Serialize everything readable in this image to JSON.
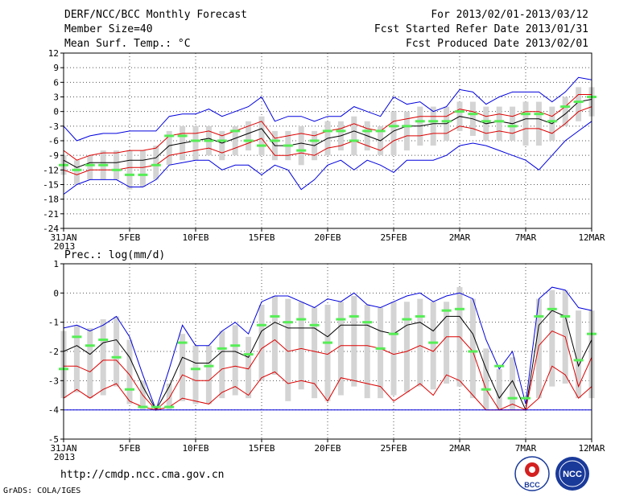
{
  "header": {
    "title": "DERF/NCC/BCC Monthly Forecast",
    "member_size": "Member Size=40",
    "variable": "Mean Surf. Temp.: °C",
    "period": "For 2013/02/01-2013/03/12",
    "refer_date": "Fcst Started Refer Date 2013/01/31",
    "produced_date": "Fcst Produced Date 2013/02/01"
  },
  "footer": {
    "url": "http://cmdp.ncc.cma.gov.cn",
    "grads": "GrADS: COLA/IGES",
    "logo_bcc": "BCC",
    "logo_ncc": "NCC"
  },
  "colors": {
    "max_min": "#0000dd",
    "pctl": "#dd0000",
    "mean": "#000000",
    "bar": "#d4d4d4",
    "obs": "#55ee55",
    "grid": "#555555"
  },
  "chart_data": [
    {
      "type": "line",
      "title": "Mean Surf. Temp.: °C",
      "x": [
        "31JAN",
        "1FEB",
        "2FEB",
        "3FEB",
        "4FEB",
        "5FEB",
        "6FEB",
        "7FEB",
        "8FEB",
        "9FEB",
        "10FEB",
        "11FEB",
        "12FEB",
        "13FEB",
        "14FEB",
        "15FEB",
        "16FEB",
        "17FEB",
        "18FEB",
        "19FEB",
        "20FEB",
        "21FEB",
        "22FEB",
        "23FEB",
        "24FEB",
        "25FEB",
        "26FEB",
        "27FEB",
        "28FEB",
        "1MAR",
        "2MAR",
        "3MAR",
        "4MAR",
        "5MAR",
        "6MAR",
        "7MAR",
        "8MAR",
        "9MAR",
        "10MAR",
        "11MAR",
        "12MAR"
      ],
      "xticks": [
        "31JAN",
        "5FEB",
        "10FEB",
        "15FEB",
        "20FEB",
        "25FEB",
        "2MAR",
        "7MAR",
        "12MAR"
      ],
      "xtick_sub": "2013",
      "ylim": [
        -24,
        12
      ],
      "yticks": [
        "12",
        "9",
        "6",
        "3",
        "0",
        "-3",
        "-6",
        "-9",
        "-12",
        "-15",
        "-18",
        "-21",
        "-24"
      ],
      "ystep": 3,
      "series": [
        {
          "name": "max",
          "values": [
            -3,
            -6,
            -5,
            -4.5,
            -4.5,
            -4,
            -4,
            -4,
            -1,
            -0.5,
            -0.5,
            0.5,
            -1,
            0,
            1,
            3,
            -2,
            -1,
            -1,
            -2,
            -1,
            -1,
            1,
            0,
            -1,
            3,
            1.5,
            2,
            0,
            1,
            4.5,
            4,
            1.5,
            3,
            4,
            4,
            4,
            2,
            4,
            7,
            6.5
          ]
        },
        {
          "name": "p_upper",
          "values": [
            -8,
            -10,
            -9,
            -8.5,
            -8.5,
            -8,
            -8,
            -7.5,
            -5,
            -4.5,
            -4.5,
            -4,
            -5,
            -4,
            -3,
            -2,
            -5.5,
            -5,
            -4.5,
            -5,
            -4,
            -3.5,
            -2.5,
            -3.5,
            -4,
            -2,
            -1.5,
            -1,
            -1,
            -1,
            0.5,
            0,
            -1,
            -0.5,
            -1,
            0,
            0,
            -1,
            1,
            3.5,
            3.5
          ]
        },
        {
          "name": "mean",
          "values": [
            -10,
            -11.5,
            -10.5,
            -10.5,
            -10.5,
            -10,
            -10,
            -9.5,
            -7,
            -6.5,
            -6,
            -5.5,
            -6.5,
            -5.5,
            -4.5,
            -3.5,
            -7,
            -7,
            -6.5,
            -7,
            -5.5,
            -5,
            -4,
            -5,
            -6,
            -4,
            -3,
            -3,
            -2.5,
            -2.5,
            -1,
            -1.5,
            -2.5,
            -2,
            -2.5,
            -1.5,
            -1.5,
            -2.5,
            -0.5,
            2,
            2.5
          ]
        },
        {
          "name": "p_lower",
          "values": [
            -12,
            -13,
            -12,
            -12,
            -12,
            -11.5,
            -11.5,
            -11,
            -9,
            -8.5,
            -8,
            -7.5,
            -8.5,
            -7.5,
            -6.5,
            -5.5,
            -9,
            -9,
            -8.5,
            -9,
            -7.5,
            -7,
            -6,
            -7,
            -8,
            -6,
            -5,
            -5,
            -4.5,
            -4.5,
            -3,
            -3.5,
            -4.5,
            -4,
            -4.5,
            -3.5,
            -3.5,
            -4.5,
            -2.5,
            0,
            1
          ]
        },
        {
          "name": "min",
          "values": [
            -17,
            -15,
            -14,
            -14,
            -14,
            -15.5,
            -15.5,
            -14,
            -11,
            -10.5,
            -10,
            -10,
            -12,
            -11,
            -11,
            -13,
            -11,
            -12,
            -16,
            -14,
            -11,
            -10,
            -12,
            -10,
            -11,
            -12.5,
            -10,
            -10,
            -10,
            -9,
            -7,
            -6.5,
            -7,
            -8,
            -9,
            -10,
            -12,
            -9,
            -6,
            -4,
            -2
          ]
        }
      ],
      "bars": {
        "lo": [
          -13,
          -15,
          -14,
          -14,
          -14,
          -16,
          -15.5,
          -14,
          -11,
          -10,
          -10,
          -9,
          -10,
          -9,
          -8,
          -9,
          -10,
          -10,
          -11,
          -10,
          -9,
          -8,
          -9,
          -8,
          -9,
          -9,
          -8,
          -7,
          -7,
          -6,
          -4,
          -5,
          -6,
          -6,
          -6,
          -7,
          -7,
          -6,
          -3,
          -2,
          -1
        ],
        "hi": [
          -9,
          -10,
          -9,
          -8,
          -8,
          -8,
          -8,
          -7,
          -4,
          -3,
          -3,
          -3,
          -4,
          -3,
          -2,
          -1,
          -4,
          -4,
          -3,
          -4,
          -2,
          -2,
          -1,
          -2,
          -3,
          0,
          0,
          1,
          1,
          1,
          2,
          2,
          1,
          1,
          1,
          2,
          2,
          1,
          3,
          5,
          5
        ]
      },
      "obs": [
        -11,
        -12,
        -11,
        -11,
        -12,
        -13,
        -13,
        -11,
        -5,
        -5,
        -6,
        -6,
        -6,
        -4,
        -6,
        -7,
        -6,
        -7,
        -8,
        -6,
        -4,
        -4,
        -6,
        -4,
        -4,
        -3,
        -3,
        -2,
        -2,
        -2,
        0,
        -0.5,
        -2,
        -2,
        -3,
        -0.5,
        -0.5,
        -2,
        1,
        2,
        3
      ]
    },
    {
      "type": "line",
      "title": "Prec.: log(mm/d)",
      "x": [
        "31JAN",
        "1FEB",
        "2FEB",
        "3FEB",
        "4FEB",
        "5FEB",
        "6FEB",
        "7FEB",
        "8FEB",
        "9FEB",
        "10FEB",
        "11FEB",
        "12FEB",
        "13FEB",
        "14FEB",
        "15FEB",
        "16FEB",
        "17FEB",
        "18FEB",
        "19FEB",
        "20FEB",
        "21FEB",
        "22FEB",
        "23FEB",
        "24FEB",
        "25FEB",
        "26FEB",
        "27FEB",
        "28FEB",
        "1MAR",
        "2MAR",
        "3MAR",
        "4MAR",
        "5MAR",
        "6MAR",
        "7MAR",
        "8MAR",
        "9MAR",
        "10MAR",
        "11MAR",
        "12MAR"
      ],
      "xticks": [
        "31JAN",
        "5FEB",
        "10FEB",
        "15FEB",
        "20FEB",
        "25FEB",
        "2MAR",
        "7MAR",
        "12MAR"
      ],
      "xtick_sub": "2013",
      "ylim": [
        -5,
        1
      ],
      "yticks": [
        "1",
        "0",
        "-1",
        "-2",
        "-3",
        "-4",
        "-5"
      ],
      "ystep": 1,
      "series": [
        {
          "name": "max",
          "values": [
            -1.2,
            -1.1,
            -1.3,
            -1.1,
            -0.8,
            -1.5,
            -2.8,
            -4,
            -2.6,
            -1.1,
            -1.8,
            -1.8,
            -1.3,
            -1,
            -1.4,
            -0.3,
            -0.1,
            -0.1,
            -0.3,
            -0.5,
            -0.2,
            -0.3,
            0,
            -0.4,
            -0.5,
            -0.3,
            -0.1,
            0,
            -0.3,
            -0.1,
            0,
            -0.2,
            -1.6,
            -2.6,
            -2,
            -3.8,
            -0.2,
            0.2,
            0.1,
            -0.5,
            -0.6
          ]
        },
        {
          "name": "mean",
          "values": [
            -2,
            -1.8,
            -2.1,
            -1.7,
            -1.6,
            -2.2,
            -3.2,
            -4,
            -3.2,
            -2.2,
            -2.4,
            -2.4,
            -2,
            -2,
            -2.2,
            -1.3,
            -1,
            -1.2,
            -1.2,
            -1.2,
            -1.5,
            -1.1,
            -1.1,
            -1.1,
            -1.3,
            -1.4,
            -1.1,
            -1,
            -1.3,
            -0.8,
            -0.8,
            -1.4,
            -2.6,
            -3.6,
            -3,
            -4,
            -1.1,
            -0.6,
            -0.8,
            -2.5,
            -1.6
          ]
        },
        {
          "name": "p_upper",
          "values": [
            -2.5,
            -2.5,
            -2.7,
            -2.3,
            -2.3,
            -2.8,
            -3.5,
            -4,
            -3.6,
            -2.8,
            -3,
            -3,
            -2.6,
            -2.5,
            -2.6,
            -1.9,
            -1.6,
            -2,
            -1.9,
            -2,
            -2.1,
            -1.8,
            -1.8,
            -1.8,
            -1.9,
            -2.1,
            -2,
            -1.8,
            -2,
            -1.5,
            -1.5,
            -2,
            -3.3,
            -4,
            -3.8,
            -4,
            -1.8,
            -1.3,
            -1.5,
            -3.2,
            -2.2
          ]
        },
        {
          "name": "p_lower",
          "values": [
            -3.6,
            -3.3,
            -3.6,
            -3.3,
            -3.1,
            -3.7,
            -3.9,
            -4,
            -3.9,
            -3.6,
            -3.7,
            -3.8,
            -3.4,
            -3.2,
            -3.5,
            -2.9,
            -2.7,
            -3.1,
            -3,
            -3.1,
            -3.7,
            -2.9,
            -3,
            -3.1,
            -3.2,
            -3.7,
            -3.4,
            -3.1,
            -3.5,
            -2.8,
            -3,
            -3.5,
            -4,
            -4,
            -4,
            -4,
            -3.6,
            -2.5,
            -2.8,
            -3.6,
            -3.2
          ]
        },
        {
          "name": "min",
          "values": [
            -4,
            -4,
            -4,
            -4,
            -4,
            -4,
            -4,
            -4,
            -4,
            -4,
            -4,
            -4,
            -4,
            -4,
            -4,
            -4,
            -4,
            -4,
            -4,
            -4,
            -4,
            -4,
            -4,
            -4,
            -4,
            -4,
            -4,
            -4,
            -4,
            -4,
            -4,
            -4,
            -4,
            -4,
            -4,
            -4,
            -4,
            -4,
            -4,
            -4,
            -4
          ]
        }
      ],
      "bars": {
        "lo": [
          -3.6,
          -3.4,
          -3.6,
          -3.5,
          -3.2,
          -3.8,
          -4,
          -4,
          -4,
          -3.7,
          -3.8,
          -3.8,
          -3.6,
          -3.5,
          -3.6,
          -3,
          -2.8,
          -3.7,
          -3.3,
          -3.6,
          -3.7,
          -3.5,
          -3.2,
          -3.6,
          -3.6,
          -3.5,
          -3.4,
          -3.2,
          -3.3,
          -3.1,
          -3.2,
          -3.6,
          -4,
          -4,
          -4,
          -4,
          -3.6,
          -3.2,
          -3.1,
          -3.6,
          -3.6
        ],
        "hi": [
          -1.3,
          -1.1,
          -1.2,
          -0.9,
          -0.8,
          -1.6,
          -3,
          -4,
          -3.1,
          -1.4,
          -1.8,
          -1.8,
          -1.3,
          -1.1,
          -1.5,
          -0.4,
          -0.1,
          -0.2,
          -0.3,
          -0.5,
          -0.4,
          -0.3,
          -0.1,
          -0.4,
          -0.5,
          -0.3,
          -0.3,
          -0.2,
          -0.3,
          -0.3,
          0.2,
          -0.2,
          -1.9,
          -2.6,
          -2.2,
          -4,
          -0.2,
          0.1,
          0.1,
          -0.6,
          -0.6
        ]
      },
      "obs": [
        -2.6,
        -1.5,
        -1.8,
        -1.6,
        -2.2,
        -3.3,
        -3.9,
        -3.9,
        -3.9,
        -1.7,
        -2.6,
        -2.5,
        -1.9,
        -1.8,
        -2.1,
        -1.1,
        -0.8,
        -1,
        -0.9,
        -1.1,
        -1.7,
        -0.9,
        -0.8,
        -1,
        -1.9,
        -1.4,
        -0.9,
        -0.8,
        -1.7,
        -0.6,
        -0.55,
        -2,
        -3.3,
        -2.5,
        -3.6,
        -3.6,
        -0.8,
        -0.55,
        -0.8,
        -2.3,
        -1.4
      ]
    }
  ]
}
